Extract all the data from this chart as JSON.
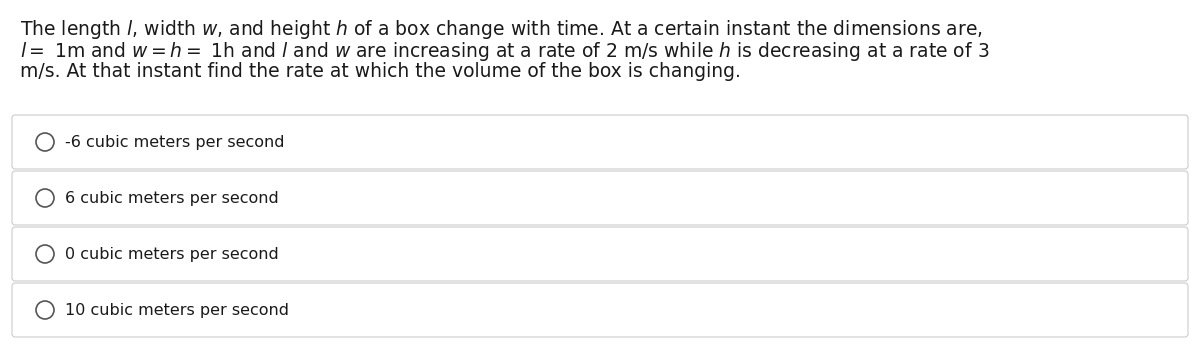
{
  "bg_color": "#ffffff",
  "text_color": "#1a1a1a",
  "options": [
    "-6 cubic meters per second",
    "6 cubic meters per second",
    "0 cubic meters per second",
    "10 cubic meters per second"
  ],
  "option_border_color": "#cccccc",
  "radio_color": "#555555",
  "font_size_question": 13.5,
  "font_size_options": 11.5,
  "fig_width": 12.0,
  "fig_height": 3.56,
  "dpi": 100
}
